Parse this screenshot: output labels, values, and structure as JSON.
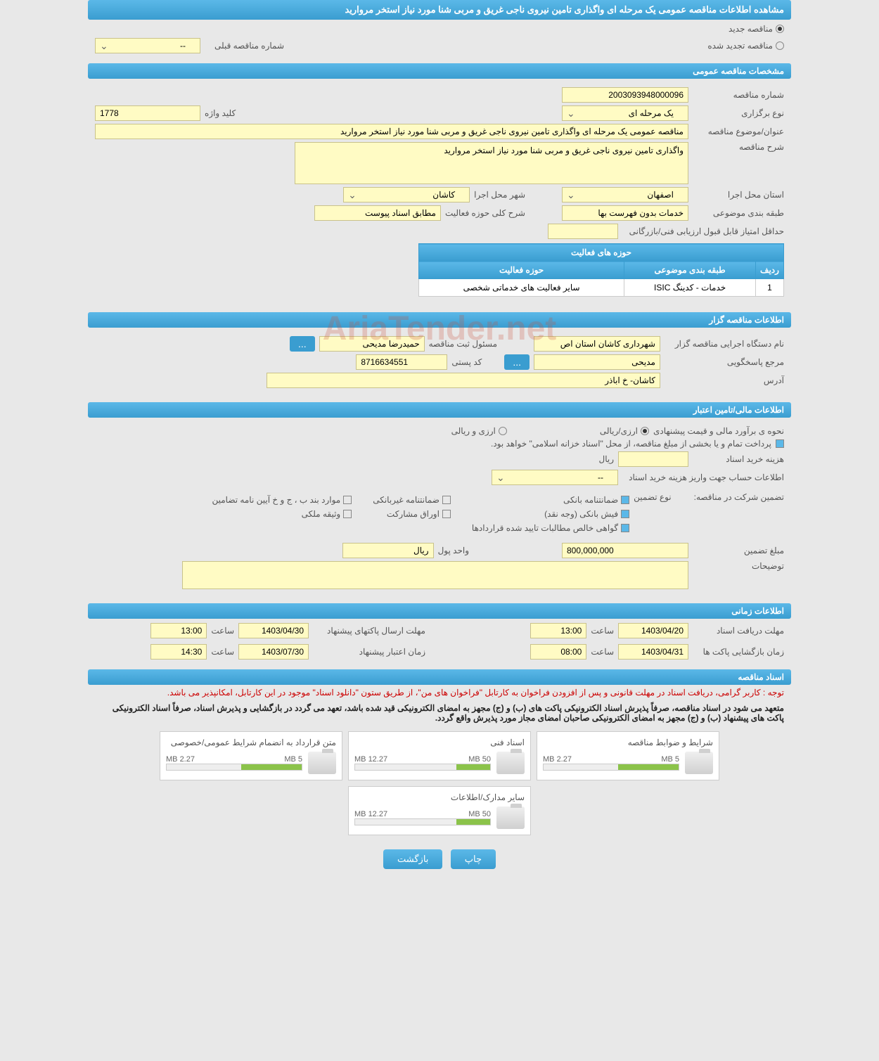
{
  "page_title": "مشاهده اطلاعات مناقصه عمومی یک مرحله ای واگذاری تامین نیروی ناجی غریق و مربی شنا مورد نیاز استخر مروارید",
  "status_options": {
    "new": "مناقصه جدید",
    "renewed": "مناقصه تجدید شده"
  },
  "prev_tender": {
    "label": "شماره مناقصه قبلی",
    "value": "--"
  },
  "sections": {
    "general": "مشخصات مناقصه عمومی",
    "organizer": "اطلاعات مناقصه گزار",
    "financial": "اطلاعات مالی/تامین اعتبار",
    "timing": "اطلاعات زمانی",
    "documents": "اسناد مناقصه"
  },
  "general": {
    "tender_no_label": "شماره مناقصه",
    "tender_no": "2003093948000096",
    "type_label": "نوع برگزاری",
    "type": "یک مرحله ای",
    "keyword_label": "کلید واژه",
    "keyword": "1778",
    "subject_label": "عنوان/موضوع مناقصه",
    "subject": "مناقصه عمومی یک مرحله ای واگذاری تامین نیروی ناجی غریق و مربی شنا مورد نیاز استخر مروارید",
    "desc_label": "شرح مناقصه",
    "desc": "واگذاری تامین نیروی ناجی غریق و مربی شنا مورد نیاز استخر مروارید",
    "province_label": "استان محل اجرا",
    "province": "اصفهان",
    "city_label": "شهر محل اجرا",
    "city": "کاشان",
    "category_label": "طبقه بندی موضوعی",
    "category": "خدمات بدون فهرست بها",
    "activity_desc_label": "شرح کلی حوزه فعالیت",
    "activity_desc": "مطابق اسناد پیوست",
    "min_score_label": "حداقل امتیاز قابل قبول ارزیابی فنی/بازرگانی",
    "min_score": ""
  },
  "activity_table": {
    "title": "حوزه های فعالیت",
    "headers": [
      "ردیف",
      "طبقه بندی موضوعی",
      "حوزه فعالیت"
    ],
    "rows": [
      [
        "1",
        "خدمات - کدینگ ISIC",
        "سایر فعالیت های خدماتی شخصی"
      ]
    ]
  },
  "organizer": {
    "org_label": "نام دستگاه اجرایی مناقصه گزار",
    "org": "شهرداری کاشان استان اص",
    "reg_officer_label": "مسئول ثبت مناقصه",
    "reg_officer": "حمیدرضا مدیحی",
    "contact_label": "مرجع پاسخگویی",
    "contact": "مدیحی",
    "postal_label": "کد پستی",
    "postal": "8716634551",
    "address_label": "آدرس",
    "address": "کاشان- خ اباذر",
    "more_btn": "..."
  },
  "financial": {
    "estimate_label": "نحوه ی برآورد مالی و قیمت پیشنهادی",
    "opt_rial": "ارزی/ریالی",
    "opt_currency": "ارزی و ریالی",
    "payment_note": "پرداخت تمام و یا بخشی از مبلغ مناقصه، از محل \"اسناد خزانه اسلامی\" خواهد بود.",
    "doc_cost_label": "هزینه خرید اسناد",
    "doc_cost": "",
    "doc_cost_unit": "ریال",
    "account_label": "اطلاعات حساب جهت واریز هزینه خرید اسناد",
    "account": "--",
    "guarantee_label": "تضمین شرکت در مناقصه:",
    "guarantee_type_label": "نوع تضمین",
    "guarantee_types": {
      "bank": "ضمانتنامه بانکی",
      "nonbank": "ضمانتنامه غیربانکی",
      "cases": "موارد بند ب ، ج و خ آیین نامه تضامین",
      "cash": "فیش بانکی (وجه نقد)",
      "bonds": "اوراق مشارکت",
      "property": "وثیقه ملکی",
      "cert": "گواهی خالص مطالبات تایید شده قراردادها"
    },
    "guarantee_amount_label": "مبلغ تضمین",
    "guarantee_amount": "800,000,000",
    "currency_label": "واحد پول",
    "currency": "ریال",
    "notes_label": "توضیحات",
    "notes": ""
  },
  "timing": {
    "receive_label": "مهلت دریافت اسناد",
    "receive_date": "1403/04/20",
    "receive_time_label": "ساعت",
    "receive_time": "13:00",
    "submit_label": "مهلت ارسال پاکتهای پیشنهاد",
    "submit_date": "1403/04/30",
    "submit_time": "13:00",
    "open_label": "زمان بازگشایی پاکت ها",
    "open_date": "1403/04/31",
    "open_time": "08:00",
    "validity_label": "زمان اعتبار پیشنهاد",
    "validity_date": "1403/07/30",
    "validity_time": "14:30"
  },
  "documents": {
    "notice1": "توجه : کاربر گرامی، دریافت اسناد در مهلت قانونی و پس از افزودن فراخوان به کارتابل \"فراخوان های من\"، از طریق ستون \"دانلود اسناد\" موجود در این کارتابل، امکانپذیر می باشد.",
    "notice2": "متعهد می شود در اسناد مناقصه، صرفاً پذیرش اسناد الکترونیکی پاکت های (ب) و (ج) مجهز به امضای الکترونیکی قید شده باشد، تعهد می گردد در بازگشایی و پذیرش اسناد، صرفاً اسناد الکترونیکی پاکت های پیشنهاد (ب) و (ج) مجهز به امضای الکترونیکی صاحبان امضای مجاز مورد پذیرش واقع گردد.",
    "items": [
      {
        "title": "شرایط و ضوابط مناقصه",
        "used": "2.27 MB",
        "total": "5 MB",
        "pct": 45
      },
      {
        "title": "اسناد فنی",
        "used": "12.27 MB",
        "total": "50 MB",
        "pct": 25
      },
      {
        "title": "متن قرارداد به انضمام شرایط عمومی/خصوصی",
        "used": "2.27 MB",
        "total": "5 MB",
        "pct": 45
      },
      {
        "title": "سایر مدارک/اطلاعات",
        "used": "12.27 MB",
        "total": "50 MB",
        "pct": 25
      }
    ]
  },
  "buttons": {
    "print": "چاپ",
    "back": "بازگشت"
  },
  "watermark": "AriaTender.net"
}
